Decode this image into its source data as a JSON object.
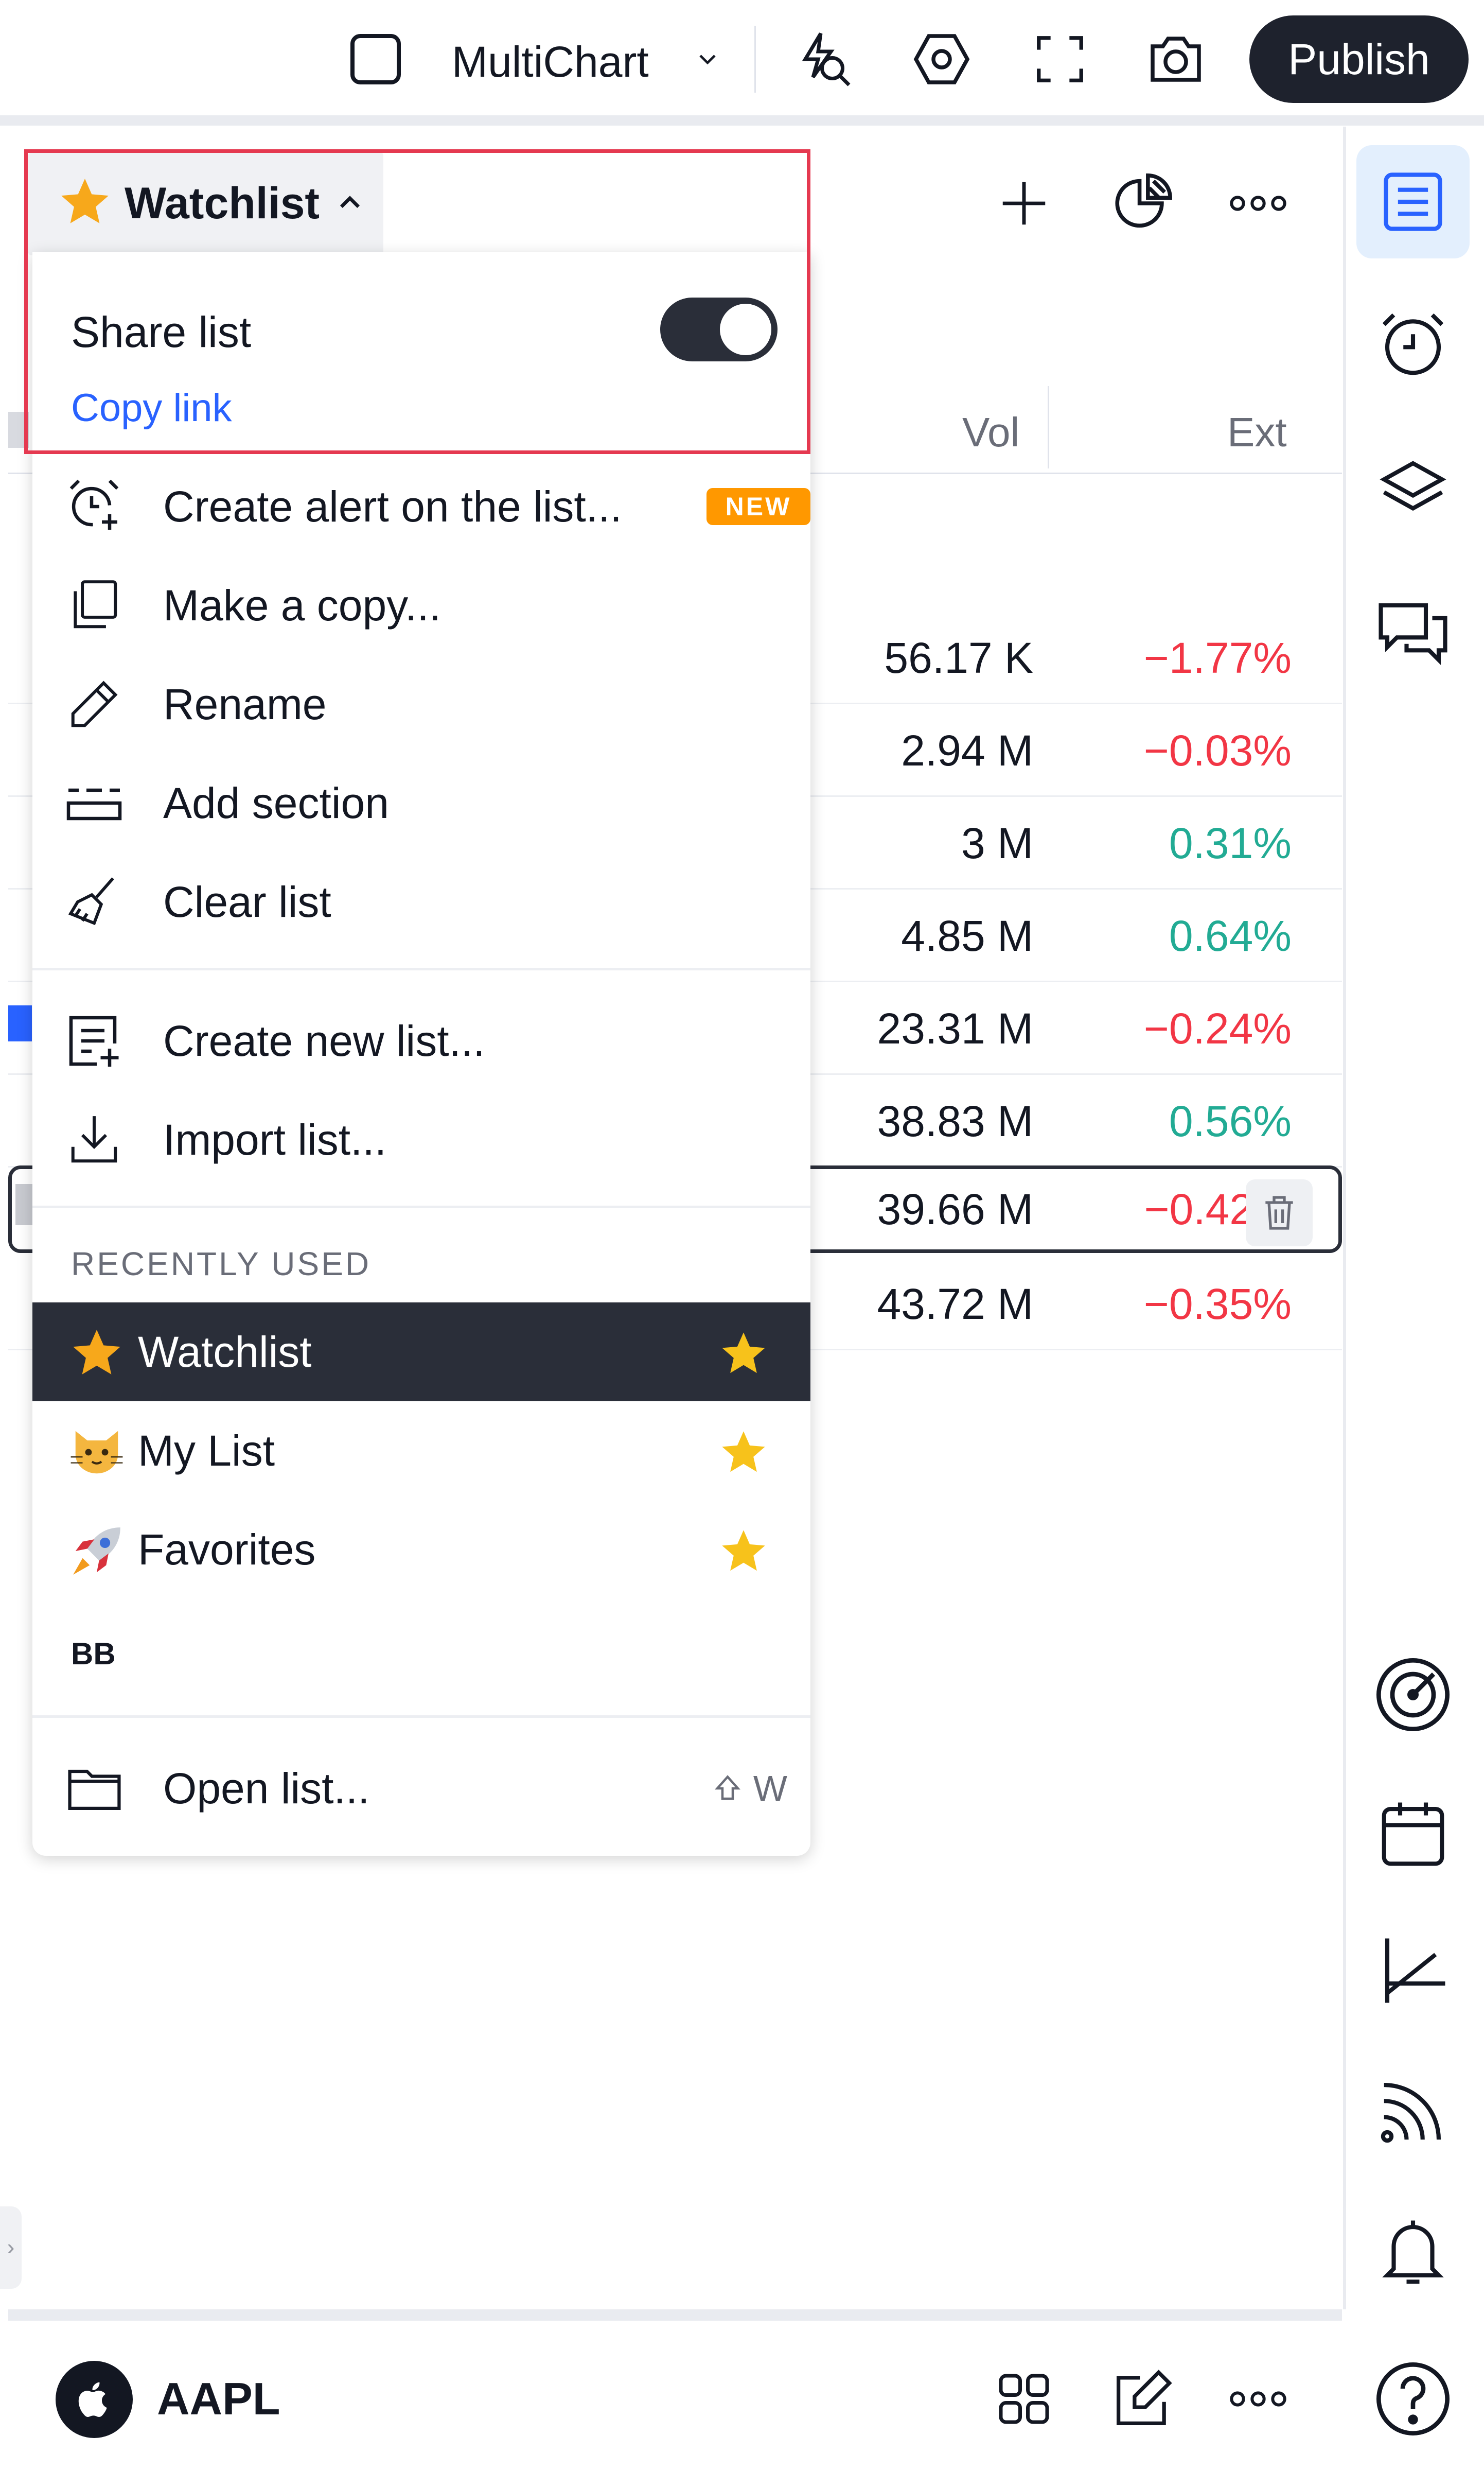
{
  "toolbar": {
    "layout_label": "MultiChart",
    "publish_label": "Publish"
  },
  "watchlist": {
    "title": "Watchlist",
    "columns": {
      "vol": "Vol",
      "ext": "Ext"
    },
    "rows": [
      {
        "vol": "56.17 K",
        "ext": "−1.77%",
        "ext_color": "#f23645"
      },
      {
        "vol": "2.94 M",
        "ext": "−0.03%",
        "ext_color": "#f23645"
      },
      {
        "vol": "3 M",
        "ext": "0.31%",
        "ext_color": "#22ab94"
      },
      {
        "vol": "4.85 M",
        "ext": "0.64%",
        "ext_color": "#22ab94"
      },
      {
        "vol": "23.31 M",
        "ext": "−0.24%",
        "ext_color": "#f23645"
      },
      {
        "vol": "38.83 M",
        "ext": "0.56%",
        "ext_color": "#22ab94"
      },
      {
        "vol": "39.66 M",
        "ext": "−0.42",
        "ext_color": "#f23645"
      },
      {
        "vol": "43.72 M",
        "ext": "−0.35%",
        "ext_color": "#f23645"
      }
    ]
  },
  "menu": {
    "share_label": "Share list",
    "share_enabled": true,
    "copy_link": "Copy link",
    "items": [
      {
        "label": "Create alert on the list...",
        "icon": "alarm-plus-icon",
        "badge": "NEW"
      },
      {
        "label": "Make a copy...",
        "icon": "copy-icon"
      },
      {
        "label": "Rename",
        "icon": "pencil-icon"
      },
      {
        "label": "Add section",
        "icon": "section-icon"
      },
      {
        "label": "Clear list",
        "icon": "broom-icon"
      },
      {
        "label": "Create new list...",
        "icon": "new-list-icon"
      },
      {
        "label": "Import list...",
        "icon": "import-icon"
      }
    ],
    "recent_heading": "RECENTLY USED",
    "recent": [
      {
        "label": "Watchlist",
        "emoji": "star",
        "active": true
      },
      {
        "label": "My List",
        "emoji": "cat"
      },
      {
        "label": "Favorites",
        "emoji": "rocket"
      }
    ],
    "bb_label": "BB",
    "open_list": {
      "label": "Open list...",
      "shortcut": "W"
    }
  },
  "bottom": {
    "symbol": "AAPL"
  },
  "colors": {
    "accent": "#2962ff",
    "negative": "#f23645",
    "positive": "#22ab94",
    "highlight_border": "#e53950",
    "badge": "#ff9800",
    "star": "#f7a81b"
  }
}
